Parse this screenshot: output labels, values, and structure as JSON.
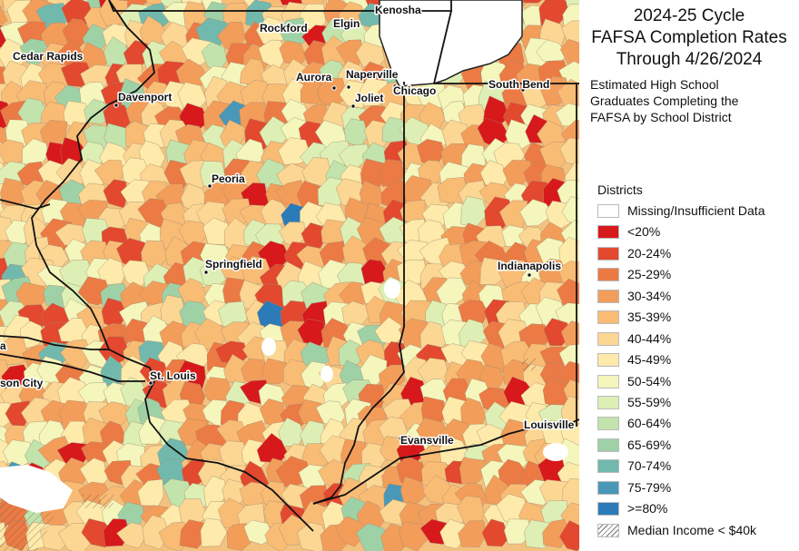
{
  "title": {
    "lines": [
      "2024-25 Cycle",
      "FAFSA Completion Rates",
      "Through 4/26/2024"
    ]
  },
  "subtitle": {
    "lines": [
      "Estimated High School",
      "Graduates Completing the",
      "FAFSA by School District"
    ]
  },
  "legend": {
    "heading": "Districts",
    "items": [
      {
        "label": "Missing/Insufficient Data",
        "color": "#ffffff"
      },
      {
        "label": "<20%",
        "color": "#d7191c"
      },
      {
        "label": "20-24%",
        "color": "#e2492f"
      },
      {
        "label": "25-29%",
        "color": "#ec7a44"
      },
      {
        "label": "30-34%",
        "color": "#f39d5a"
      },
      {
        "label": "35-39%",
        "color": "#f9bc75"
      },
      {
        "label": "40-44%",
        "color": "#fcd693"
      },
      {
        "label": "45-49%",
        "color": "#feeaaa"
      },
      {
        "label": "50-54%",
        "color": "#f4f6bc"
      },
      {
        "label": "55-59%",
        "color": "#ddefb5"
      },
      {
        "label": "60-64%",
        "color": "#c2e3ab"
      },
      {
        "label": "65-69%",
        "color": "#9fd1a7"
      },
      {
        "label": "70-74%",
        "color": "#72b9ad"
      },
      {
        "label": "75-79%",
        "color": "#4a98b8"
      },
      {
        "label": ">=80%",
        "color": "#2b7bb9"
      },
      {
        "label": "Median Income < $40k",
        "color": "hatch"
      }
    ]
  },
  "cities": [
    {
      "name": "Kenosha"
    },
    {
      "name": "Rockford"
    },
    {
      "name": "Cedar Rapids"
    },
    {
      "name": "Elgin"
    },
    {
      "name": "Aurora"
    },
    {
      "name": "Naperville"
    },
    {
      "name": "Joliet"
    },
    {
      "name": "Chicago"
    },
    {
      "name": "South Bend"
    },
    {
      "name": "Davenport"
    },
    {
      "name": "Peoria"
    },
    {
      "name": "Springfield"
    },
    {
      "name": "Indianapolis"
    },
    {
      "name": "St. Louis"
    },
    {
      "name": "son City"
    },
    {
      "name": "Evansville"
    },
    {
      "name": "Louisville"
    },
    {
      "name": "a"
    }
  ]
}
